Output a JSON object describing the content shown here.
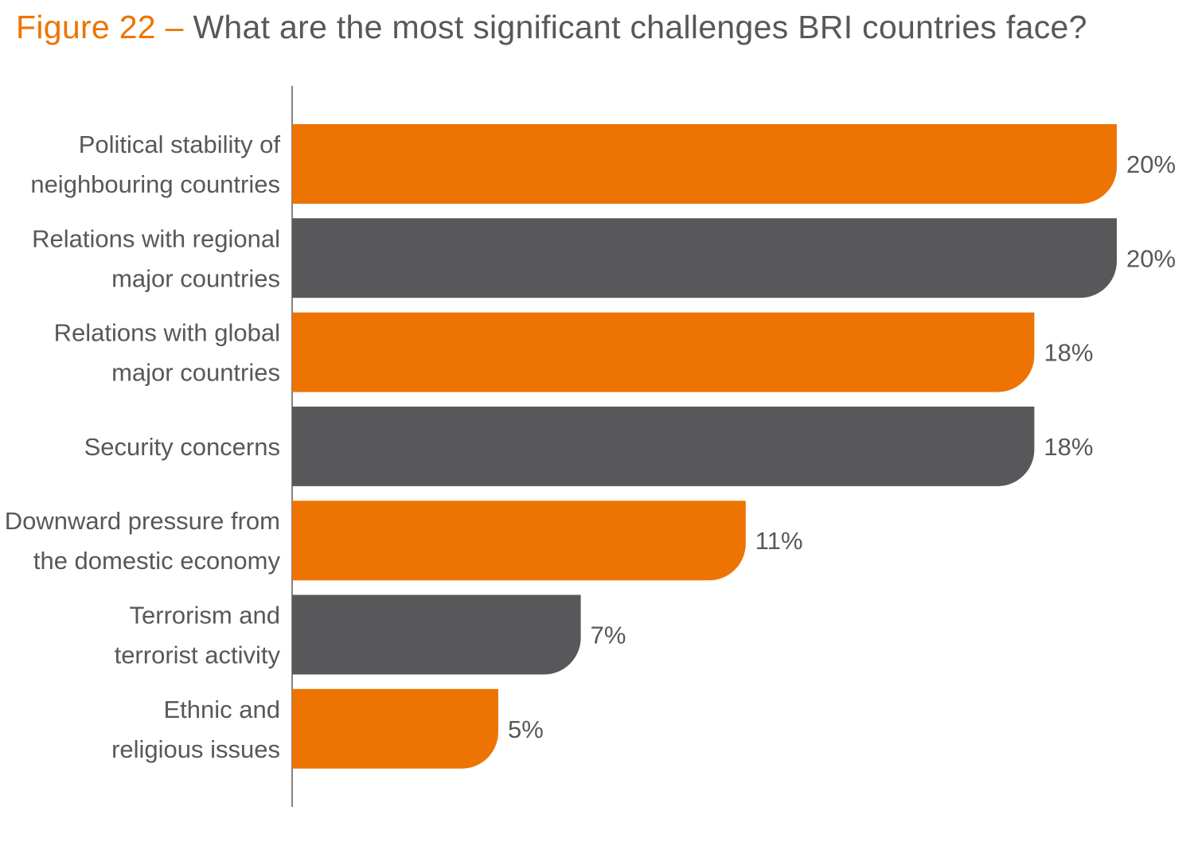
{
  "title": {
    "figure_label": "Figure 22",
    "separator": "–",
    "question": "What are the most significant challenges BRI countries face?"
  },
  "colors": {
    "accent": "#ed7402",
    "secondary": "#58585a",
    "axis": "#58585a",
    "text": "#58585a"
  },
  "chart_data": {
    "type": "bar",
    "orientation": "horizontal",
    "title": "What are the most significant challenges BRI countries face?",
    "xlabel": "",
    "ylabel": "",
    "unit": "%",
    "xlim": [
      0,
      20
    ],
    "grid": false,
    "legend": "none",
    "categories": [
      [
        "Political stability of",
        "neighbouring countries"
      ],
      [
        "Relations with regional",
        "major countries"
      ],
      [
        "Relations with global",
        "major countries"
      ],
      [
        "Security concerns"
      ],
      [
        "Downward pressure from",
        "the domestic economy"
      ],
      [
        "Terrorism and",
        "terrorist activity"
      ],
      [
        "Ethnic and",
        "religious issues"
      ]
    ],
    "values": [
      20,
      20,
      18,
      18,
      11,
      7,
      5
    ],
    "value_labels": [
      "20%",
      "20%",
      "18%",
      "18%",
      "11%",
      "7%",
      "5%"
    ],
    "bar_colors": [
      "#ed7402",
      "#58585a",
      "#ed7402",
      "#58585a",
      "#ed7402",
      "#58585a",
      "#ed7402"
    ]
  }
}
